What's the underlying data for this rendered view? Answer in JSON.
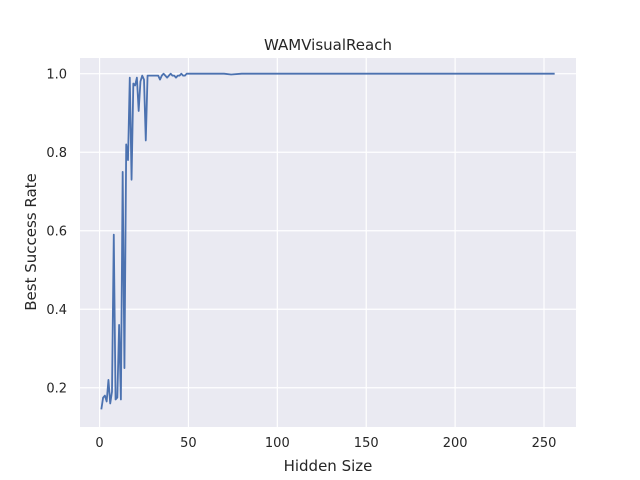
{
  "chart_data": {
    "type": "line",
    "title": "WAMVisualReach",
    "xlabel": "Hidden Size",
    "ylabel": "Best Success Rate",
    "xlim": [
      -11,
      268
    ],
    "ylim": [
      0.1,
      1.04
    ],
    "xticks": [
      0,
      50,
      100,
      150,
      200,
      250
    ],
    "xtick_labels": [
      "0",
      "50",
      "100",
      "150",
      "200",
      "250"
    ],
    "yticks": [
      0.2,
      0.4,
      0.6,
      0.8,
      1.0
    ],
    "ytick_labels": [
      "0.2",
      "0.4",
      "0.6",
      "0.8",
      "1.0"
    ],
    "grid": true,
    "background": "#eaeaf2",
    "grid_color": "#ffffff",
    "line_color": "#4c72b0",
    "series": [
      {
        "x": [
          1,
          2,
          3,
          4,
          5,
          6,
          7,
          8,
          9,
          10,
          11,
          12,
          13,
          14,
          15,
          16,
          17,
          18,
          19,
          20,
          21,
          22,
          23,
          24,
          25,
          26,
          27,
          28,
          29,
          30,
          31,
          32,
          33,
          34,
          35,
          36,
          37,
          38,
          39,
          40,
          41,
          42,
          43,
          44,
          45,
          46,
          47,
          48,
          49,
          50,
          60,
          70,
          74,
          80,
          100,
          120,
          150,
          200,
          256
        ],
        "y": [
          0.145,
          0.175,
          0.18,
          0.165,
          0.22,
          0.16,
          0.19,
          0.59,
          0.17,
          0.175,
          0.36,
          0.17,
          0.75,
          0.25,
          0.82,
          0.78,
          0.99,
          0.73,
          0.975,
          0.97,
          0.99,
          0.905,
          0.98,
          0.995,
          0.985,
          0.83,
          0.995,
          0.995,
          0.995,
          0.995,
          0.995,
          0.995,
          0.995,
          0.985,
          0.995,
          1.0,
          0.995,
          0.99,
          0.995,
          1.0,
          0.995,
          0.995,
          0.99,
          0.995,
          0.995,
          1.0,
          0.995,
          0.995,
          1.0,
          1.0,
          1.0,
          1.0,
          0.998,
          1.0,
          1.0,
          1.0,
          1.0,
          1.0,
          1.0
        ]
      }
    ]
  }
}
